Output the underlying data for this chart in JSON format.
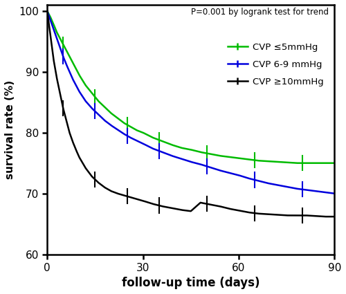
{
  "annotation": "P=0.001 by logrank test for trend",
  "xlabel": "follow-up time (days)",
  "ylabel": "survival rate (%)",
  "xlim": [
    0,
    90
  ],
  "ylim": [
    60,
    101
  ],
  "yticks": [
    60,
    70,
    80,
    90,
    100
  ],
  "xticks": [
    0,
    30,
    60,
    90
  ],
  "line1_color": "#00bb00",
  "line2_color": "#0000dd",
  "line3_color": "#000000",
  "line1_label": "CVP ≤5mmHg",
  "line2_label": "CVP 6-9 mmHg",
  "line3_label": "CVP ≥10mmHg",
  "line1_x": [
    0,
    1,
    2,
    3,
    4,
    5,
    6,
    7,
    8,
    9,
    10,
    12,
    14,
    16,
    18,
    20,
    22,
    24,
    26,
    28,
    30,
    33,
    36,
    39,
    42,
    45,
    48,
    51,
    54,
    57,
    60,
    63,
    66,
    69,
    72,
    75,
    78,
    81,
    84,
    87,
    90
  ],
  "line1_y": [
    100,
    99.0,
    97.8,
    96.5,
    95.5,
    94.5,
    93.5,
    92.5,
    91.5,
    90.5,
    89.5,
    87.8,
    86.5,
    85.2,
    84.2,
    83.2,
    82.4,
    81.6,
    81.0,
    80.4,
    80.0,
    79.2,
    78.6,
    78.0,
    77.5,
    77.2,
    76.8,
    76.5,
    76.2,
    76.0,
    75.8,
    75.6,
    75.4,
    75.3,
    75.2,
    75.1,
    75.0,
    75.0,
    75.0,
    75.0,
    75.0
  ],
  "line2_x": [
    0,
    1,
    2,
    3,
    4,
    5,
    6,
    7,
    8,
    9,
    10,
    12,
    14,
    16,
    18,
    20,
    22,
    24,
    26,
    28,
    30,
    33,
    36,
    39,
    42,
    45,
    48,
    51,
    54,
    57,
    60,
    63,
    66,
    69,
    72,
    75,
    78,
    81,
    84,
    87,
    90
  ],
  "line2_y": [
    100,
    98.5,
    97.0,
    95.5,
    94.0,
    92.5,
    91.2,
    90.0,
    88.8,
    87.8,
    86.8,
    85.2,
    84.0,
    83.0,
    82.0,
    81.2,
    80.5,
    79.8,
    79.2,
    78.7,
    78.2,
    77.4,
    76.8,
    76.2,
    75.7,
    75.2,
    74.8,
    74.3,
    73.8,
    73.4,
    73.0,
    72.5,
    72.1,
    71.7,
    71.4,
    71.1,
    70.8,
    70.6,
    70.4,
    70.2,
    70.0
  ],
  "line3_x": [
    0,
    1,
    2,
    3,
    4,
    5,
    6,
    7,
    8,
    9,
    10,
    12,
    14,
    16,
    18,
    20,
    22,
    24,
    26,
    28,
    30,
    33,
    36,
    39,
    42,
    45,
    48,
    51,
    54,
    57,
    60,
    63,
    66,
    69,
    72,
    75,
    78,
    81,
    84,
    87,
    90
  ],
  "line3_y": [
    100,
    96.0,
    92.0,
    89.0,
    86.5,
    84.0,
    82.0,
    80.0,
    78.5,
    77.2,
    76.0,
    74.2,
    72.8,
    71.8,
    71.0,
    70.4,
    70.0,
    69.7,
    69.4,
    69.1,
    68.8,
    68.3,
    67.9,
    67.6,
    67.3,
    67.1,
    68.5,
    68.2,
    67.9,
    67.5,
    67.2,
    66.9,
    66.7,
    66.6,
    66.5,
    66.4,
    66.4,
    66.4,
    66.3,
    66.2,
    66.2
  ],
  "censoring_tick_size": 1.2,
  "linewidth": 1.8,
  "tick_positions_1": [
    5,
    15,
    25,
    35,
    50,
    65,
    80
  ],
  "tick_positions_2": [
    5,
    15,
    25,
    35,
    50,
    65,
    80
  ],
  "tick_positions_3": [
    5,
    15,
    25,
    35,
    50,
    65,
    80
  ]
}
